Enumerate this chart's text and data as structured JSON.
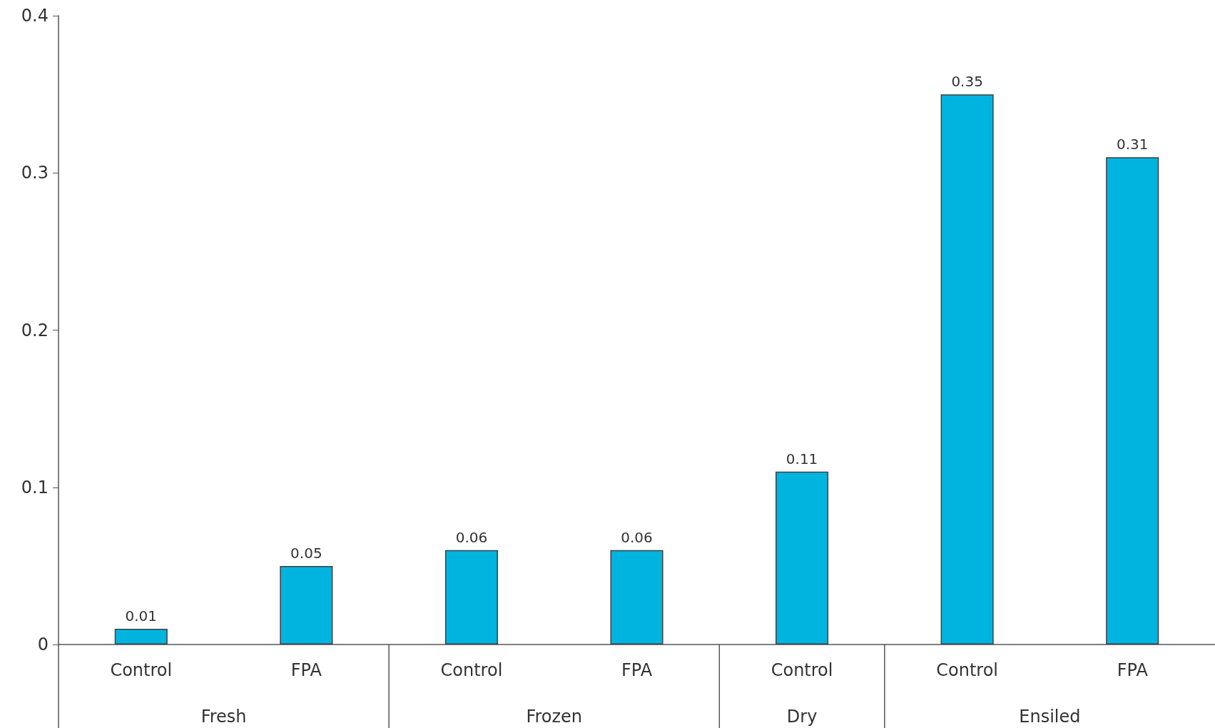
{
  "chart_data": {
    "type": "bar",
    "categories": [
      "Control",
      "FPA",
      "Control",
      "FPA",
      "Control",
      "Control",
      "FPA"
    ],
    "values": [
      0.01,
      0.05,
      0.06,
      0.06,
      0.11,
      0.35,
      0.31
    ],
    "color": "#00b4e0",
    "ylim": [
      0,
      0.4
    ],
    "yticks": [
      0,
      0.1,
      0.2,
      0.3,
      0.4
    ],
    "grid": false,
    "data_labels": true,
    "annotations": [
      "Fresh",
      "Frozen",
      "Dry",
      "Ensiled"
    ]
  }
}
